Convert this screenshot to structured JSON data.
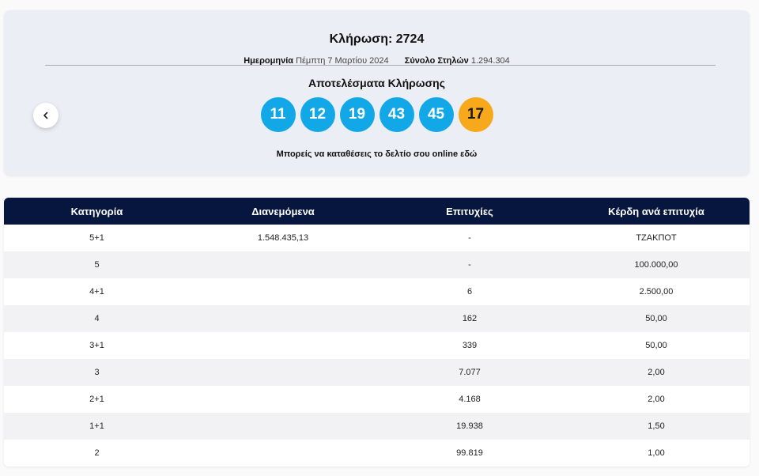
{
  "draw": {
    "title": "Κλήρωση: 2724",
    "date_label": "Ημερομηνία",
    "date_value": "Πέμπτη 7 Μαρτίου 2024",
    "columns_label": "Σύνολο Στηλών",
    "columns_value": "1.294.304",
    "results_title": "Αποτελέσματα Κλήρωσης",
    "numbers": [
      "11",
      "12",
      "19",
      "43",
      "45"
    ],
    "joker": "17",
    "online_text": "Μπορείς να καταθέσεις το δελτίο σου online",
    "online_link": "εδώ",
    "prev_icon": "chevron-left-icon"
  },
  "colors": {
    "main_ball": "#12a8e8",
    "joker_ball": "#f7a81b",
    "header_bg": "#07163e",
    "card_bg": "#eceef6"
  },
  "table": {
    "headers": [
      "Κατηγορία",
      "Διανεμόμενα",
      "Επιτυχίες",
      "Κέρδη ανά επιτυχία"
    ],
    "rows": [
      [
        "5+1",
        "1.548.435,13",
        "-",
        "ΤΖΑΚΠΟΤ"
      ],
      [
        "5",
        "",
        "-",
        "100.000,00"
      ],
      [
        "4+1",
        "",
        "6",
        "2.500,00"
      ],
      [
        "4",
        "",
        "162",
        "50,00"
      ],
      [
        "3+1",
        "",
        "339",
        "50,00"
      ],
      [
        "3",
        "",
        "7.077",
        "2,00"
      ],
      [
        "2+1",
        "",
        "4.168",
        "2,00"
      ],
      [
        "1+1",
        "",
        "19.938",
        "1,50"
      ],
      [
        "2",
        "",
        "99.819",
        "1,00"
      ]
    ]
  }
}
